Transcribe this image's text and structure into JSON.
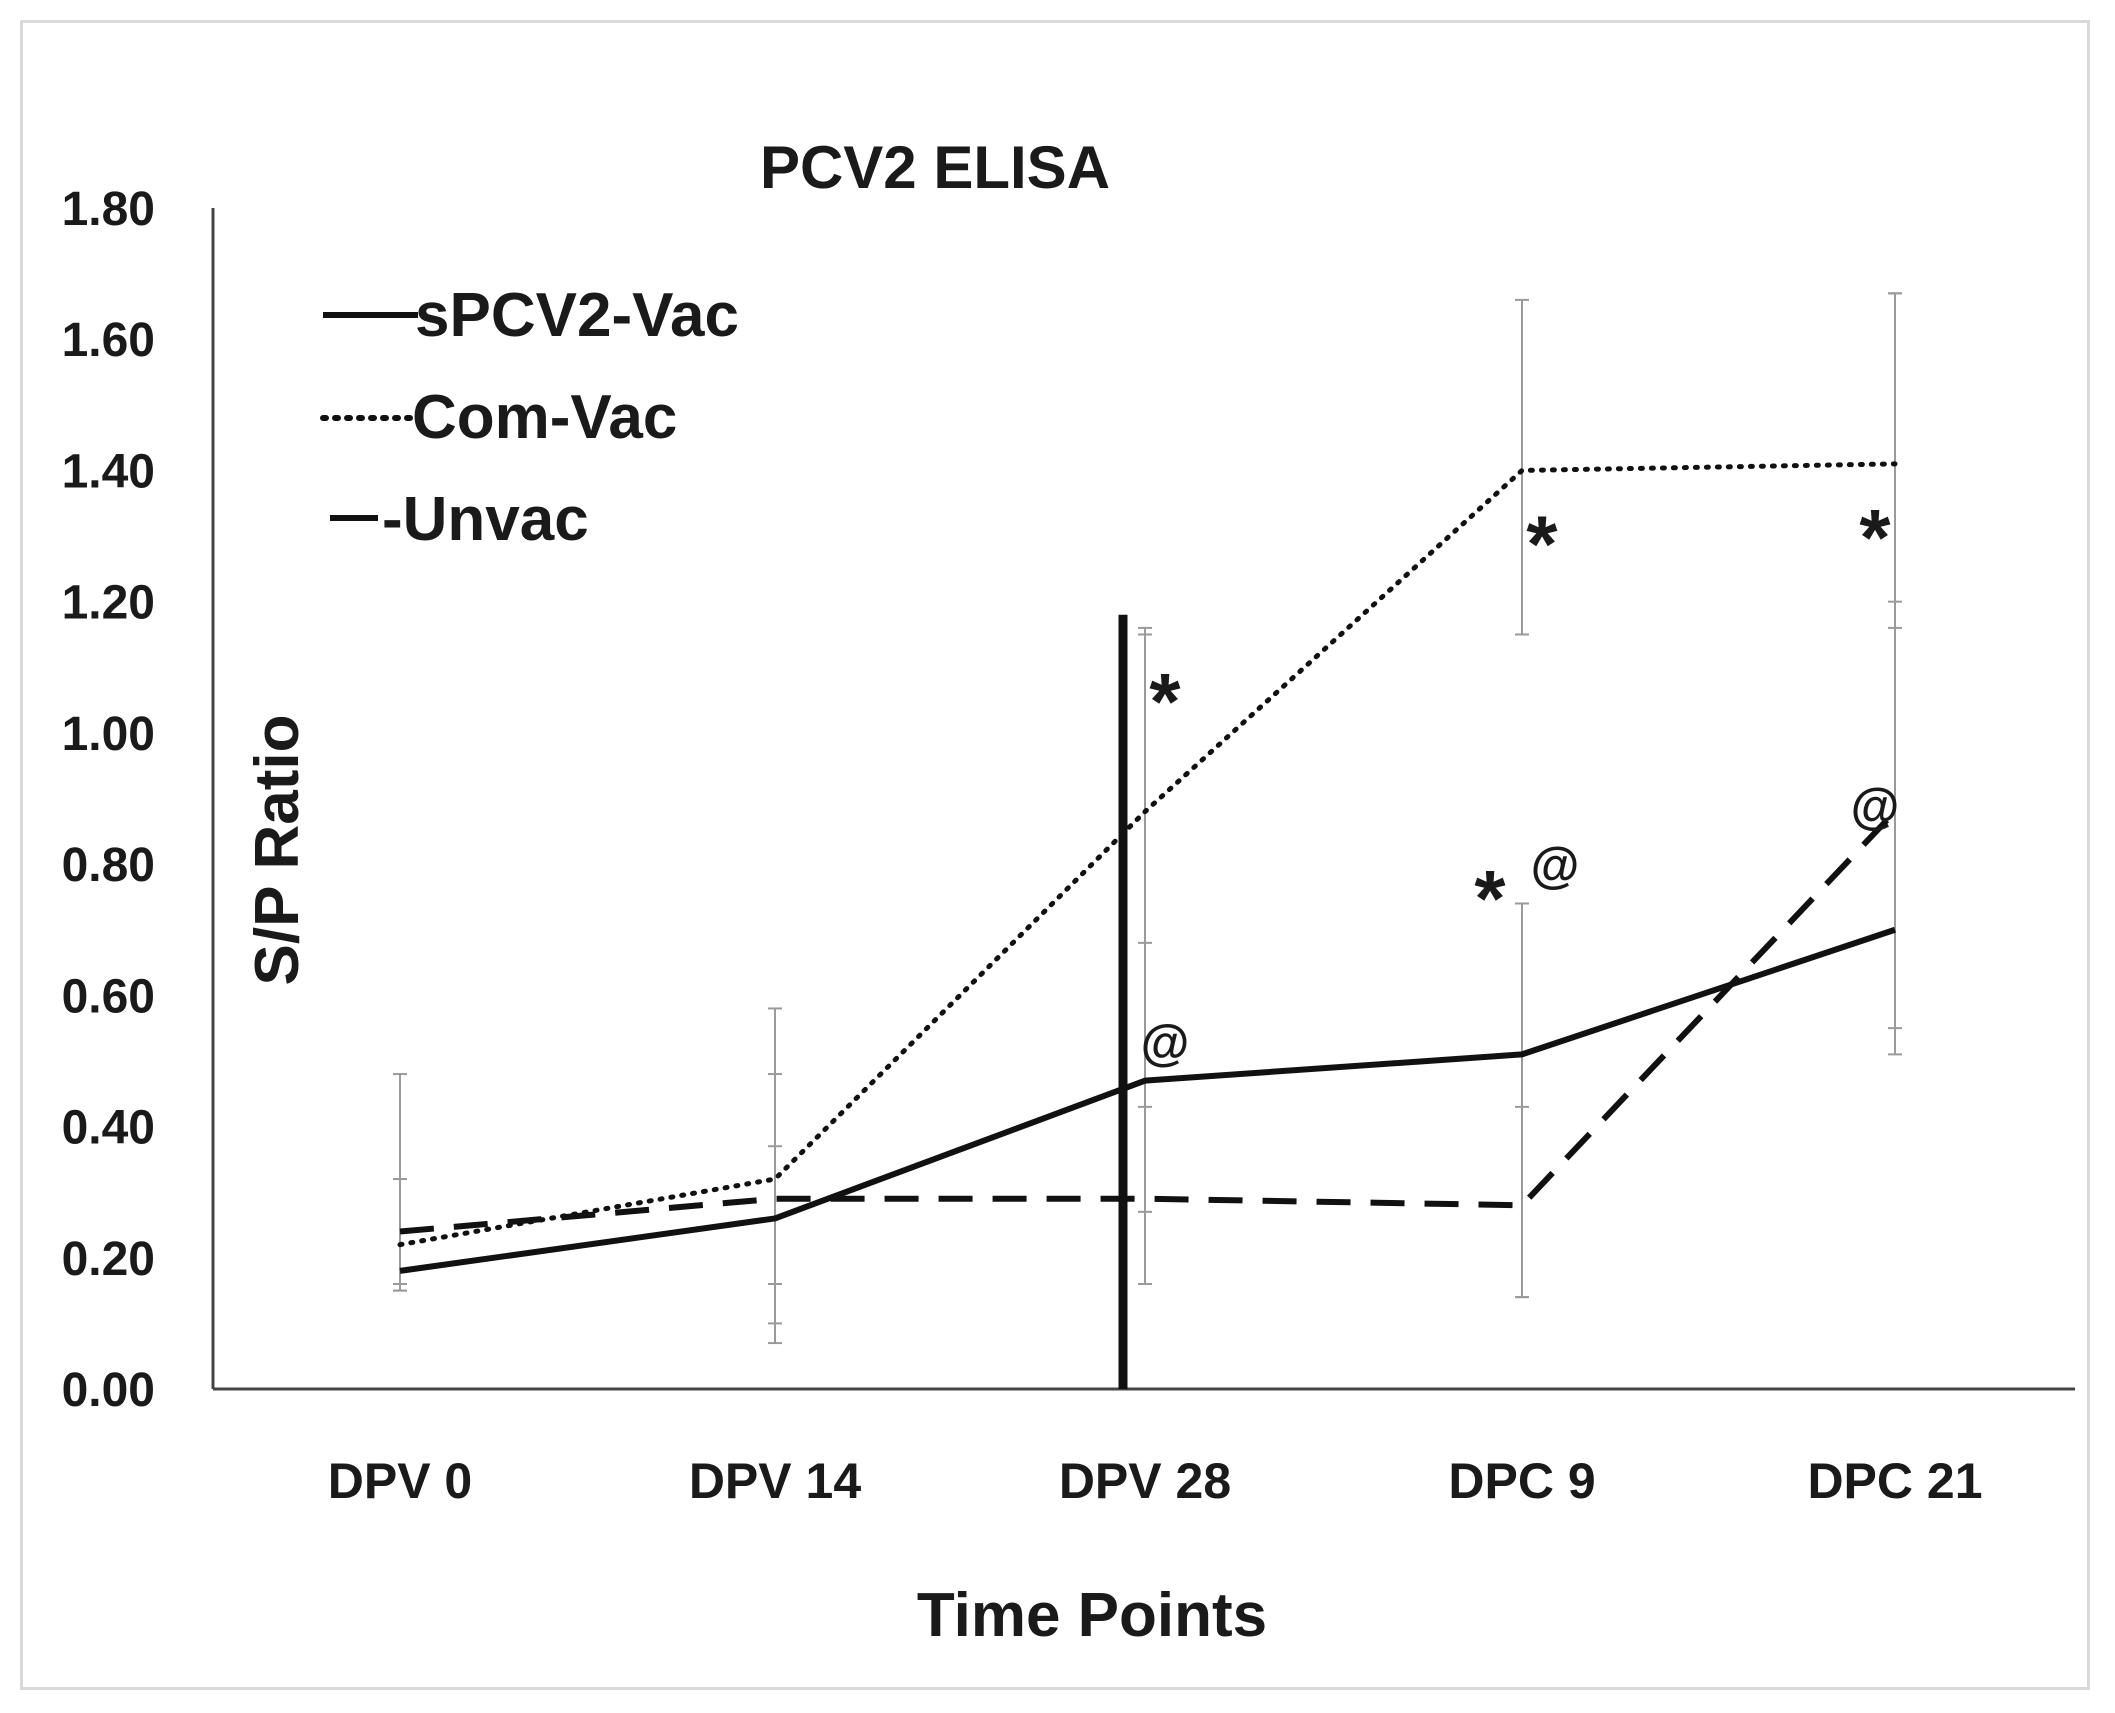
{
  "chart_data": {
    "type": "line",
    "title": "PCV2 ELISA",
    "xlabel": "Time Points",
    "ylabel": "S/P Ratio",
    "categories": [
      "DPV 0",
      "DPV 14",
      "DPV 28",
      "DPC 9",
      "DPC 21"
    ],
    "ylim": [
      0,
      1.8
    ],
    "yticks": [
      "0.00",
      "0.20",
      "0.40",
      "0.60",
      "0.80",
      "1.00",
      "1.20",
      "1.40",
      "1.60",
      "1.80"
    ],
    "grid": false,
    "legend_position": "top-left",
    "series": [
      {
        "name": "sPCV2-Vac",
        "style": "solid",
        "values": [
          0.18,
          0.26,
          0.47,
          0.51,
          0.7
        ],
        "error_low": [
          0.15,
          0.07,
          0.16,
          0.14,
          0.51
        ],
        "error_high": [
          0.48,
          0.58,
          1.15,
          0.74,
          1.67
        ]
      },
      {
        "name": "Com-Vac",
        "style": "dotted",
        "values": [
          0.22,
          0.32,
          0.88,
          1.4,
          1.41
        ],
        "error_low": [
          0.16,
          0.1,
          0.43,
          1.15,
          1.2
        ],
        "error_high": [
          0.32,
          0.48,
          1.16,
          1.66,
          1.67
        ]
      },
      {
        "name": "-Unvac",
        "style": "dashed",
        "values": [
          0.24,
          0.29,
          0.29,
          0.28,
          0.88
        ],
        "error_low": [
          0.15,
          0.16,
          0.27,
          0.14,
          0.55
        ],
        "error_high": [
          0.32,
          0.37,
          0.68,
          0.43,
          1.16
        ]
      }
    ],
    "reference_line": {
      "category": "DPV 28",
      "value": 1.18
    },
    "annotations": [
      {
        "text": "*",
        "category": "DPV 28",
        "value": 1.07
      },
      {
        "text": "@",
        "category": "DPV 28",
        "value": 0.53
      },
      {
        "text": "*",
        "category": "DPC 9",
        "value": 1.31
      },
      {
        "text": "*",
        "category": "DPC 9",
        "value": 0.77
      },
      {
        "text": "@",
        "category": "DPC 9",
        "value": 0.8
      },
      {
        "text": "*",
        "category": "DPC 21",
        "value": 1.32
      },
      {
        "text": "@",
        "category": "DPC 21",
        "value": 0.89
      }
    ]
  }
}
